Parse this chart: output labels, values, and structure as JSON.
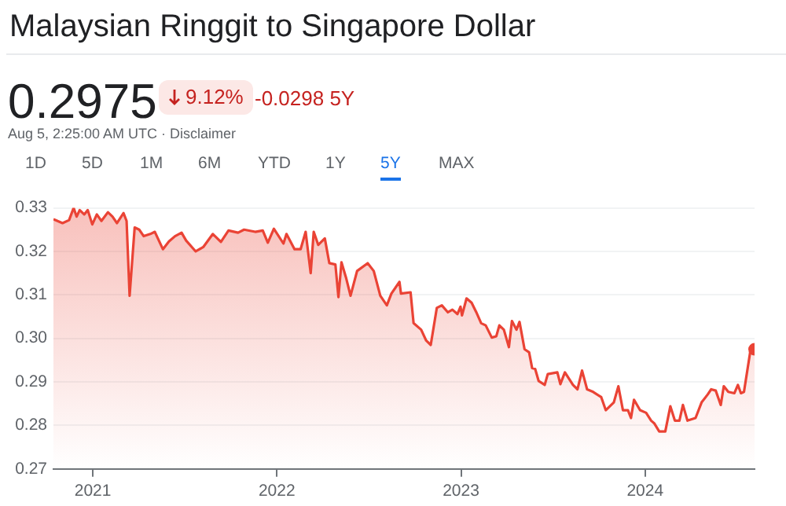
{
  "chart_data": {
    "type": "area",
    "title": "Malaysian Ringgit to Singapore Dollar",
    "subtitle": "0.2975",
    "annotations": [
      "9.12%",
      "-0.0298 5Y",
      "Aug 5, 2:25:00 AM UTC · Disclaimer",
      "1D",
      "5D",
      "1M",
      "6M",
      "YTD",
      "1Y",
      "5Y",
      "MAX"
    ],
    "x": [
      "2020-10-15",
      "2020-11-02",
      "2020-11-15",
      "2020-11-24",
      "2020-11-30",
      "2020-12-06",
      "2020-12-15",
      "2020-12-22",
      "2020-12-31",
      "2021-01-09",
      "2021-01-18",
      "2021-01-31",
      "2021-02-09",
      "2021-02-18",
      "2021-03-03",
      "2021-03-09",
      "2021-03-15",
      "2021-03-25",
      "2021-04-03",
      "2021-04-12",
      "2021-04-25",
      "2021-05-04",
      "2021-05-20",
      "2021-06-01",
      "2021-06-13",
      "2021-06-26",
      "2021-07-05",
      "2021-07-24",
      "2021-08-08",
      "2021-08-27",
      "2021-09-12",
      "2021-09-27",
      "2021-10-16",
      "2021-10-28",
      "2021-11-19",
      "2021-12-04",
      "2021-12-14",
      "2021-12-26",
      "2022-01-14",
      "2022-01-20",
      "2022-02-05",
      "2022-02-17",
      "2022-02-27",
      "2022-03-09",
      "2022-03-15",
      "2022-03-24",
      "2022-04-06",
      "2022-04-15",
      "2022-04-27",
      "2022-05-03",
      "2022-05-09",
      "2022-05-18",
      "2022-05-27",
      "2022-06-09",
      "2022-06-30",
      "2022-07-12",
      "2022-07-25",
      "2022-08-07",
      "2022-08-16",
      "2022-09-01",
      "2022-09-04",
      "2022-09-23",
      "2022-09-29",
      "2022-10-14",
      "2022-10-24",
      "2022-11-02",
      "2022-11-14",
      "2022-11-24",
      "2022-12-06",
      "2022-12-15",
      "2022-12-25",
      "2022-12-31",
      "2023-01-03",
      "2023-01-12",
      "2023-01-22",
      "2023-01-31",
      "2023-02-10",
      "2023-02-19",
      "2023-03-03",
      "2023-03-12",
      "2023-03-18",
      "2023-03-27",
      "2023-04-06",
      "2023-04-12",
      "2023-04-21",
      "2023-04-27",
      "2023-05-07",
      "2023-05-16",
      "2023-05-22",
      "2023-05-28",
      "2023-06-04",
      "2023-06-16",
      "2023-06-22",
      "2023-07-11",
      "2023-07-17",
      "2023-07-26",
      "2023-08-11",
      "2023-08-20",
      "2023-08-29",
      "2023-09-08",
      "2023-09-20",
      "2023-10-06",
      "2023-10-15",
      "2023-10-31",
      "2023-11-09",
      "2023-11-18",
      "2023-11-28",
      "2023-12-04",
      "2023-12-10",
      "2023-12-22",
      "2024-01-03",
      "2024-01-13",
      "2024-01-19",
      "2024-01-29",
      "2024-02-10",
      "2024-02-20",
      "2024-02-29",
      "2024-03-09",
      "2024-03-16",
      "2024-03-25",
      "2024-04-10",
      "2024-04-22",
      "2024-05-04",
      "2024-05-11",
      "2024-05-20",
      "2024-05-30",
      "2024-06-05",
      "2024-06-14",
      "2024-06-26",
      "2024-07-03",
      "2024-07-09",
      "2024-07-15",
      "2024-07-29",
      "2024-08-05"
    ],
    "series": [
      {
        "color": "#ea4335",
        "values": [
          0.3274,
          0.3265,
          0.3272,
          0.33,
          0.328,
          0.3295,
          0.3285,
          0.3295,
          0.3262,
          0.3285,
          0.327,
          0.329,
          0.328,
          0.3265,
          0.3288,
          0.327,
          0.3098,
          0.3255,
          0.325,
          0.3235,
          0.324,
          0.3245,
          0.3205,
          0.3223,
          0.3235,
          0.3243,
          0.3225,
          0.32,
          0.321,
          0.324,
          0.3222,
          0.3248,
          0.3243,
          0.325,
          0.3245,
          0.3248,
          0.322,
          0.3252,
          0.3218,
          0.324,
          0.3205,
          0.3205,
          0.3245,
          0.315,
          0.3245,
          0.3215,
          0.323,
          0.3173,
          0.317,
          0.3095,
          0.3175,
          0.314,
          0.3098,
          0.3155,
          0.3173,
          0.3155,
          0.3098,
          0.3076,
          0.3103,
          0.313,
          0.3103,
          0.3106,
          0.3035,
          0.302,
          0.2995,
          0.2985,
          0.307,
          0.3076,
          0.306,
          0.3066,
          0.3056,
          0.3073,
          0.3053,
          0.3092,
          0.3082,
          0.3061,
          0.3035,
          0.303,
          0.3002,
          0.3005,
          0.303,
          0.302,
          0.298,
          0.304,
          0.302,
          0.3038,
          0.2975,
          0.2968,
          0.2932,
          0.293,
          0.2902,
          0.2893,
          0.2918,
          0.2922,
          0.2895,
          0.2922,
          0.2893,
          0.2883,
          0.2926,
          0.2883,
          0.2877,
          0.2865,
          0.2835,
          0.2853,
          0.289,
          0.2835,
          0.2835,
          0.2817,
          0.2859,
          0.2835,
          0.2829,
          0.2811,
          0.2805,
          0.2786,
          0.2786,
          0.2844,
          0.2811,
          0.2811,
          0.2847,
          0.2811,
          0.2817,
          0.2853,
          0.2871,
          0.2883,
          0.288,
          0.2847,
          0.289,
          0.2877,
          0.2874,
          0.2893,
          0.2874,
          0.2877,
          0.2981,
          0.2975
        ]
      }
    ],
    "xlim": [
      "2020-10-15",
      "2024-08-05"
    ],
    "xticks": [
      {
        "value": "2021-01-01",
        "label": "2021"
      },
      {
        "value": "2022-01-01",
        "label": "2022"
      },
      {
        "value": "2023-01-01",
        "label": "2023"
      },
      {
        "value": "2024-01-01",
        "label": "2024"
      }
    ],
    "ylim": [
      0.27,
      0.33
    ],
    "yticks": [
      0.27,
      0.28,
      0.29,
      {
        "value": 0.3,
        "label": "0.30"
      },
      0.31,
      0.32,
      0.33
    ],
    "grid": "y",
    "legend": false,
    "marker": "none"
  }
}
